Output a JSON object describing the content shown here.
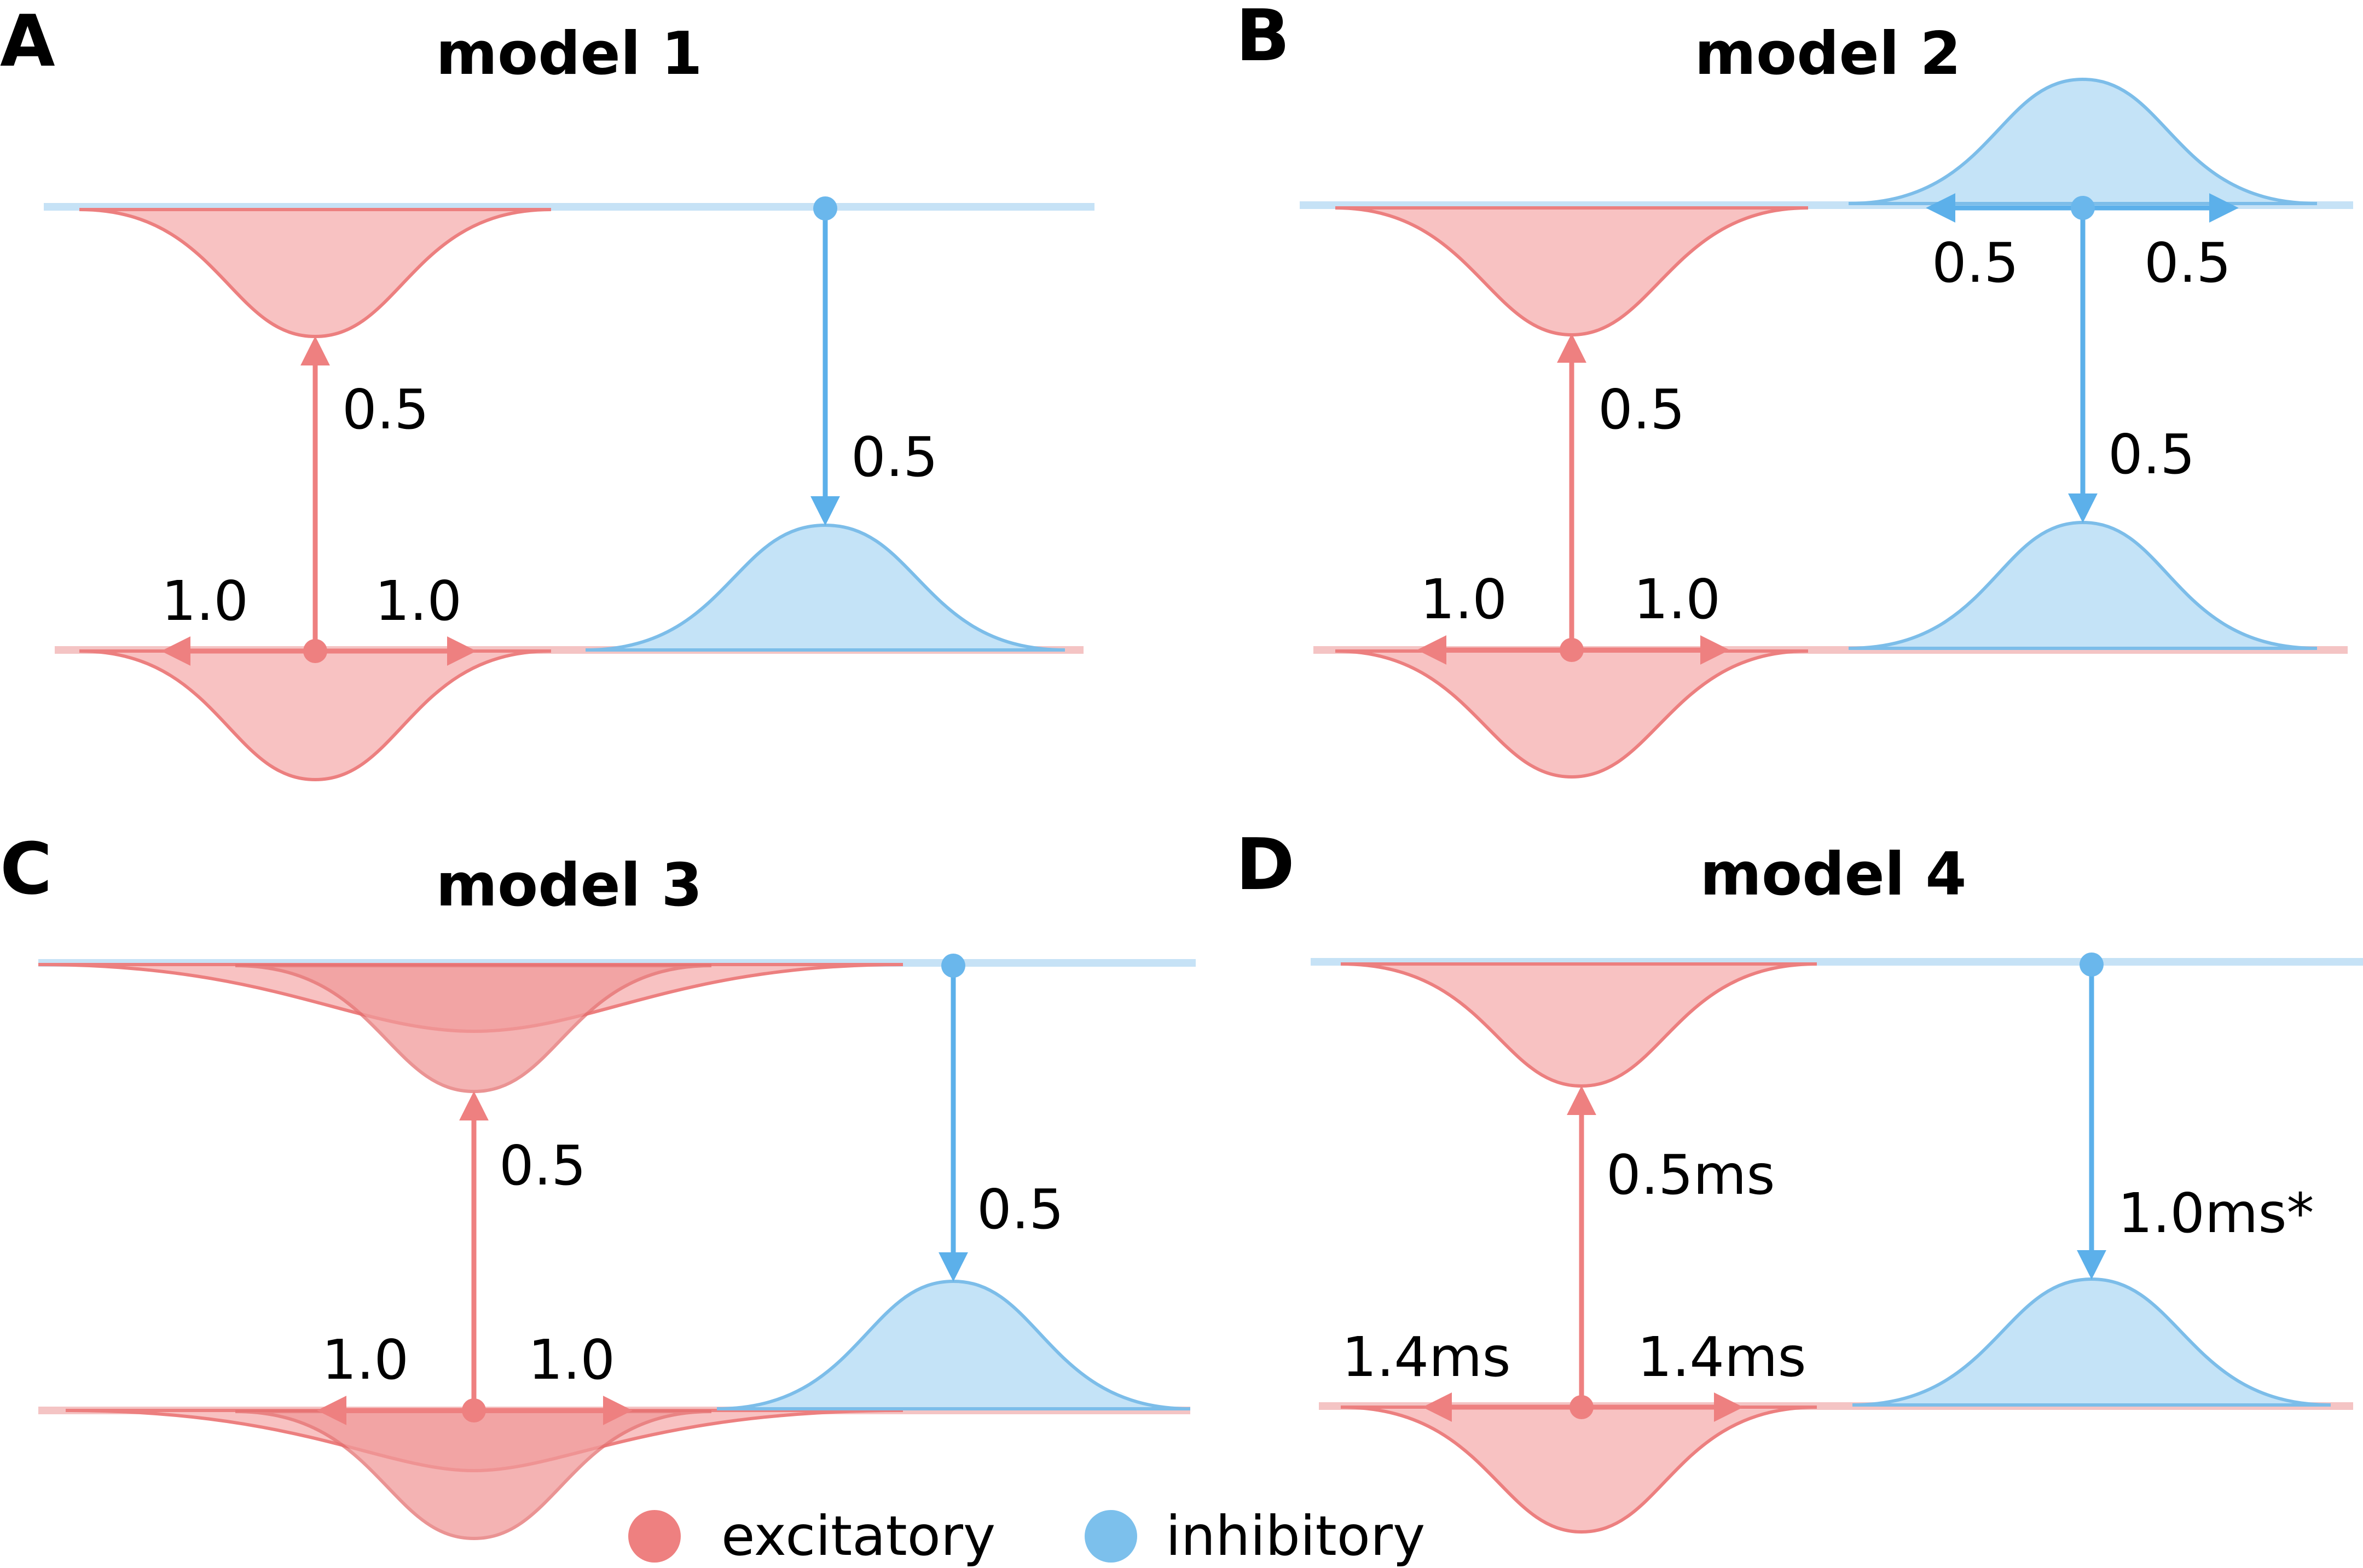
{
  "panels": [
    {
      "letter": "A",
      "title": "model 1",
      "up": "0.5",
      "down": "0.5",
      "left": "1.0",
      "right": "1.0"
    },
    {
      "letter": "B",
      "title": "model 2",
      "up": "0.5",
      "down": "0.5",
      "left": "1.0",
      "right": "1.0",
      "inh_left": "0.5",
      "inh_right": "0.5"
    },
    {
      "letter": "C",
      "title": "model 3",
      "up": "0.5",
      "down": "0.5",
      "left": "1.0",
      "right": "1.0"
    },
    {
      "letter": "D",
      "title": "model 4",
      "up": "0.5ms",
      "down": "1.0ms*",
      "left": "1.4ms",
      "right": "1.4ms"
    }
  ],
  "legend": {
    "excitatory": "excitatory",
    "inhibitory": "inhibitory"
  },
  "colors": {
    "excitatory": "#ee8080",
    "inhibitory": "#7cc0ec"
  }
}
